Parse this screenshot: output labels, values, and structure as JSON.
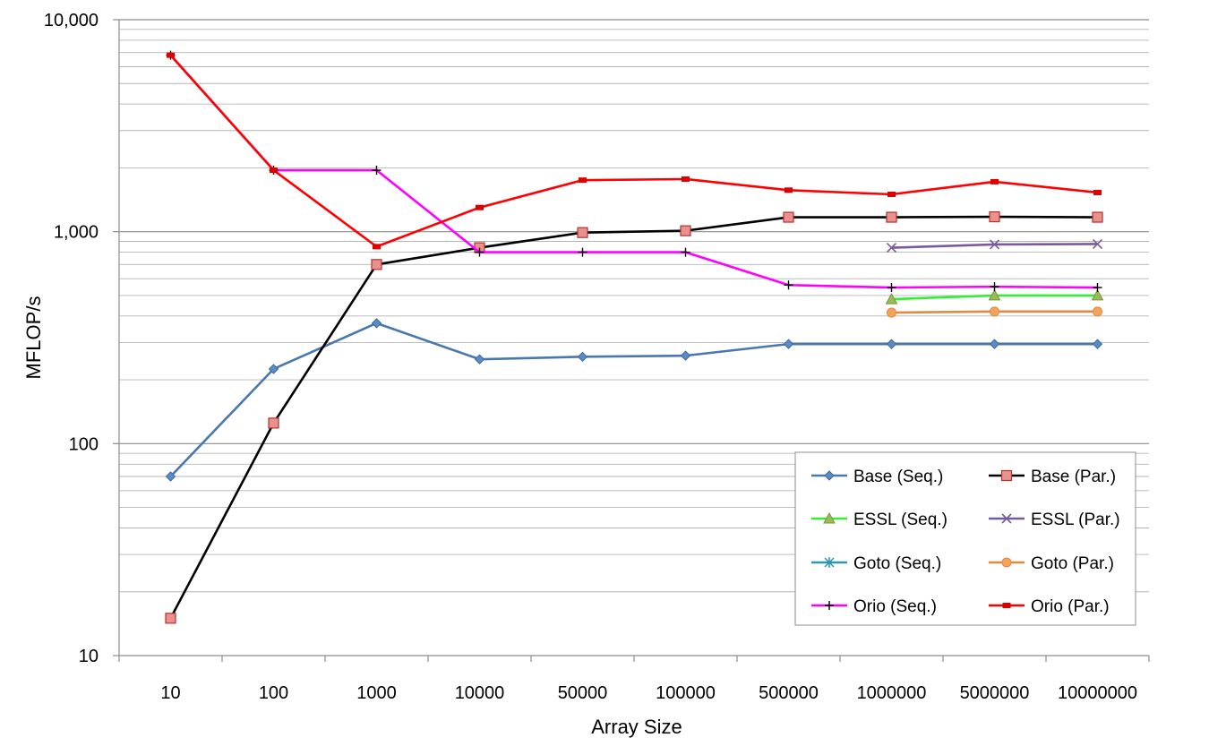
{
  "chart_data": {
    "type": "line",
    "title": "",
    "xlabel": "Array Size",
    "ylabel": "MFLOP/s",
    "yscale": "log",
    "ylim": [
      10,
      10000
    ],
    "yticks": [
      10,
      100,
      1000,
      10000
    ],
    "ytick_labels": [
      "10",
      "100",
      "1,000",
      "10,000"
    ],
    "grid": true,
    "legend_position": "bottom-right",
    "categories": [
      "10",
      "100",
      "1000",
      "10000",
      "50000",
      "100000",
      "500000",
      "1000000",
      "5000000",
      "10000000"
    ],
    "series": [
      {
        "name": "Base (Seq.)",
        "color": "#4a78ae",
        "marker": "diamond",
        "values": [
          70,
          225,
          370,
          250,
          257,
          260,
          295,
          295,
          295,
          295
        ]
      },
      {
        "name": "Base (Par.)",
        "color": "#000000",
        "marker": "square",
        "marker_fill": "#e8918f",
        "marker_edge": "#b5322e",
        "values": [
          15,
          125,
          700,
          840,
          990,
          1010,
          1170,
          1170,
          1175,
          1170
        ]
      },
      {
        "name": "ESSL (Seq.)",
        "color": "#33ee33",
        "marker": "triangle",
        "marker_fill": "#9bbb59",
        "marker_edge": "#77933c",
        "values": [
          null,
          null,
          null,
          null,
          null,
          null,
          null,
          480,
          500,
          500
        ]
      },
      {
        "name": "ESSL (Par.)",
        "color": "#7a5a9c",
        "marker": "x",
        "values": [
          null,
          null,
          null,
          null,
          null,
          null,
          null,
          840,
          870,
          875
        ]
      },
      {
        "name": "Goto (Seq.)",
        "color": "#2e98b0",
        "marker": "asterisk",
        "values": [
          null,
          null,
          null,
          null,
          null,
          null,
          null,
          null,
          null,
          null
        ]
      },
      {
        "name": "Goto (Par.)",
        "color": "#e08a44",
        "marker": "circle",
        "marker_fill": "#f5a25a",
        "marker_edge": "#e08a44",
        "values": [
          null,
          null,
          null,
          null,
          null,
          null,
          null,
          415,
          420,
          420
        ]
      },
      {
        "name": "Orio (Seq.)",
        "color": "#ff00ff",
        "marker": "plus",
        "marker_color": "#000000",
        "values": [
          6800,
          1950,
          1950,
          800,
          800,
          800,
          560,
          545,
          550,
          545
        ]
      },
      {
        "name": "Orio (Par.)",
        "color": "#ff0000",
        "marker": "dash",
        "marker_fill": "#dd0000",
        "values": [
          6800,
          1950,
          850,
          1300,
          1750,
          1770,
          1570,
          1500,
          1720,
          1530
        ]
      }
    ]
  }
}
